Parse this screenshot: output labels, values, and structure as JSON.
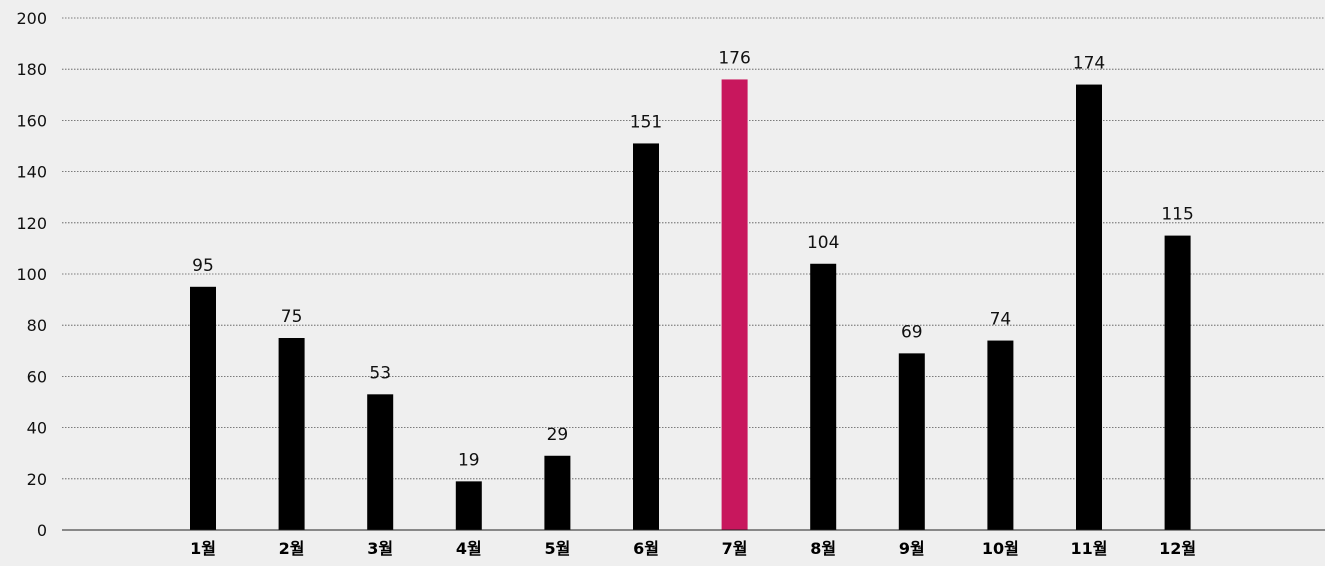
{
  "chart_data": {
    "type": "bar",
    "categories": [
      "1월",
      "2월",
      "3월",
      "4월",
      "5월",
      "6월",
      "7월",
      "8월",
      "9월",
      "10월",
      "11월",
      "12월"
    ],
    "values": [
      95,
      75,
      53,
      19,
      29,
      151,
      176,
      104,
      69,
      74,
      174,
      115
    ],
    "value_labels": [
      "95",
      "75",
      "53",
      "19",
      "29",
      "151",
      "176",
      "104",
      "69",
      "74",
      "174",
      "115"
    ],
    "yticks": [
      "0",
      "20",
      "40",
      "60",
      "80",
      "100",
      "120",
      "140",
      "160",
      "180",
      "200"
    ],
    "ylim": [
      0,
      200
    ],
    "grid": true,
    "highlight_index": 6,
    "colors": {
      "bar": "#000000",
      "highlight": "#c8175d",
      "grid": "#555555",
      "background": "#efefef"
    }
  }
}
